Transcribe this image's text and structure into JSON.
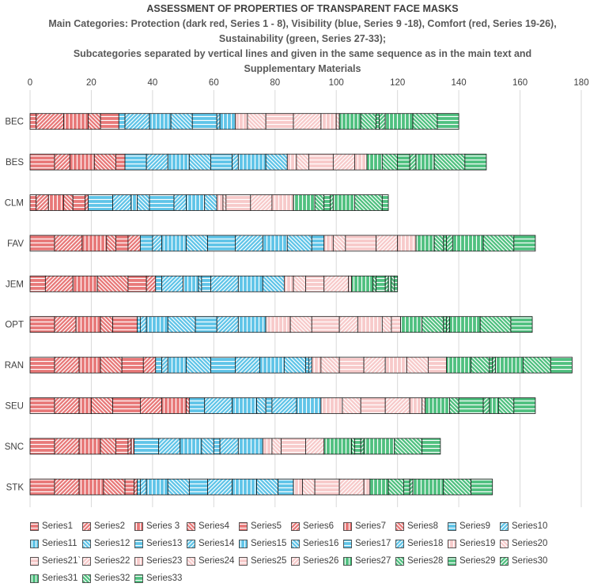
{
  "page": {
    "title": "ASSESSMENT OF PROPERTIES OF TRANSPARENT FACE MASKS",
    "subtitle_lines": [
      "Main Categories: Protection (dark red, Series 1 - 8), Visibility (blue, Series 9 -18), Comfort (red, Series 19-26),",
      "Sustainability (green, Series 27-33);",
      "Subcategories separated by vertical lines and given in the same sequence as in the main text and",
      "Supplementary Materials"
    ]
  },
  "colors": {
    "protection": "#e87878",
    "visibility": "#5fc4e8",
    "comfort": "#f7caca",
    "sustainability": "#4fc07f",
    "stroke": "#1a1a1a",
    "axis_text": "#404040"
  },
  "chart_data": {
    "type": "bar",
    "orientation": "horizontal",
    "stacked": true,
    "title": "ASSESSMENT OF PROPERTIES OF TRANSPARENT FACE MASKS",
    "xlim": [
      0,
      180
    ],
    "xticks": [
      0,
      20,
      40,
      60,
      80,
      100,
      120,
      140,
      160,
      180
    ],
    "xticks_position": "top",
    "grid": true,
    "legend_position": "bottom",
    "categories": [
      "BEC",
      "BES",
      "CLM",
      "FAV",
      "JEM",
      "OPT",
      "RAN",
      "SEU",
      "SNC",
      "STK"
    ],
    "series": [
      {
        "name": "Series1",
        "group": "protection",
        "values": [
          2,
          8,
          2,
          8,
          5,
          8,
          8,
          8,
          8,
          8
        ]
      },
      {
        "name": "Series2",
        "group": "protection",
        "values": [
          9,
          5,
          4,
          9,
          9,
          7,
          8,
          8,
          8,
          8
        ]
      },
      {
        "name": "Series 3",
        "group": "protection",
        "values": [
          8,
          8,
          5,
          8,
          8,
          8,
          7,
          4,
          7,
          8
        ]
      },
      {
        "name": "Series4",
        "group": "protection",
        "values": [
          4,
          7,
          3,
          3,
          10,
          4,
          7,
          7,
          5,
          7
        ]
      },
      {
        "name": "Series5",
        "group": "protection",
        "values": [
          6,
          3,
          4,
          4,
          6,
          8,
          7,
          9,
          4,
          3
        ]
      },
      {
        "name": "Series6",
        "group": "protection",
        "values": [
          0,
          0,
          1,
          4,
          3,
          0,
          4,
          7,
          1,
          1
        ]
      },
      {
        "name": "Series7",
        "group": "protection",
        "values": [
          0,
          0,
          0,
          0,
          0,
          0,
          0,
          8,
          1,
          0
        ]
      },
      {
        "name": "Series8",
        "group": "protection",
        "values": [
          0,
          0,
          0,
          0,
          0,
          0,
          0,
          1,
          0,
          0
        ]
      },
      {
        "name": "Series9",
        "group": "visibility",
        "values": [
          2,
          7,
          8,
          4,
          2,
          1,
          2,
          5,
          8,
          1
        ]
      },
      {
        "name": "Series10",
        "group": "visibility",
        "values": [
          8,
          7,
          6,
          3,
          7,
          2,
          2,
          9,
          7,
          2
        ]
      },
      {
        "name": "Series11",
        "group": "visibility",
        "values": [
          7,
          7,
          2,
          8,
          5,
          7,
          6,
          8,
          7,
          7
        ]
      },
      {
        "name": "Series12",
        "group": "visibility",
        "values": [
          7,
          7,
          4,
          7,
          1,
          9,
          8,
          3,
          4,
          7
        ]
      },
      {
        "name": "Series13",
        "group": "visibility",
        "values": [
          8,
          7,
          8,
          9,
          3,
          7,
          8,
          2,
          2,
          6
        ]
      },
      {
        "name": "Series14",
        "group": "visibility",
        "values": [
          1,
          2,
          4,
          9,
          9,
          7,
          8,
          8,
          6,
          8
        ]
      },
      {
        "name": "Series15",
        "group": "visibility",
        "values": [
          5,
          9,
          6,
          8,
          8,
          9,
          8,
          8,
          8,
          8
        ]
      },
      {
        "name": "Series16",
        "group": "visibility",
        "values": [
          0,
          7,
          4,
          8,
          7,
          0,
          7,
          0,
          0,
          7
        ]
      },
      {
        "name": "Series17",
        "group": "visibility",
        "values": [
          0,
          0,
          0,
          4,
          0,
          0,
          1,
          0,
          0,
          5
        ]
      },
      {
        "name": "Series18",
        "group": "visibility",
        "values": [
          0,
          0,
          0,
          0,
          0,
          0,
          1,
          0,
          0,
          0
        ]
      },
      {
        "name": "Series19",
        "group": "comfort",
        "values": [
          4,
          3,
          2,
          3,
          3,
          8,
          3,
          7,
          3,
          3
        ]
      },
      {
        "name": "Series20",
        "group": "comfort",
        "values": [
          6,
          4,
          1,
          4,
          4,
          7,
          6,
          6,
          3,
          4
        ]
      },
      {
        "name": "Series21`",
        "group": "comfort",
        "values": [
          9,
          8,
          8,
          10,
          6,
          9,
          8,
          8,
          8,
          8
        ]
      },
      {
        "name": "Series22",
        "group": "comfort",
        "values": [
          9,
          7,
          7,
          7,
          8,
          6,
          7,
          8,
          6,
          8
        ]
      },
      {
        "name": "Series23",
        "group": "comfort",
        "values": [
          5,
          4,
          7,
          6,
          1,
          8,
          7,
          4,
          0,
          2
        ]
      },
      {
        "name": "Series24",
        "group": "comfort",
        "values": [
          1,
          0,
          0,
          0,
          0,
          3,
          7,
          1,
          0,
          0
        ]
      },
      {
        "name": "Series25",
        "group": "comfort",
        "values": [
          0,
          0,
          0,
          0,
          0,
          3,
          6,
          0,
          0,
          0
        ]
      },
      {
        "name": "Series26",
        "group": "comfort",
        "values": [
          0,
          0,
          0,
          0,
          0,
          0,
          0,
          0,
          0,
          0
        ]
      },
      {
        "name": "Series27",
        "group": "sustainability",
        "values": [
          7,
          5,
          7,
          6,
          7,
          7,
          8,
          8,
          9,
          6
        ]
      },
      {
        "name": "Series28",
        "group": "sustainability",
        "values": [
          5,
          5,
          3,
          3,
          1,
          7,
          6,
          3,
          1,
          5
        ]
      },
      {
        "name": "Series29",
        "group": "sustainability",
        "values": [
          1,
          4,
          2,
          1,
          3,
          1,
          1,
          8,
          2,
          2
        ]
      },
      {
        "name": "Series30",
        "group": "sustainability",
        "values": [
          2,
          2,
          1,
          2,
          1,
          1,
          1,
          2,
          1,
          1
        ]
      },
      {
        "name": "Series31",
        "group": "sustainability",
        "values": [
          9,
          6,
          7,
          10,
          1,
          10,
          9,
          3,
          10,
          10
        ]
      },
      {
        "name": "Series32",
        "group": "sustainability",
        "values": [
          8,
          10,
          9,
          10,
          1,
          10,
          9,
          5,
          9,
          9
        ]
      },
      {
        "name": "Series33",
        "group": "sustainability",
        "values": [
          7,
          7,
          2,
          7,
          1,
          7,
          7,
          7,
          6,
          7
        ]
      }
    ]
  }
}
